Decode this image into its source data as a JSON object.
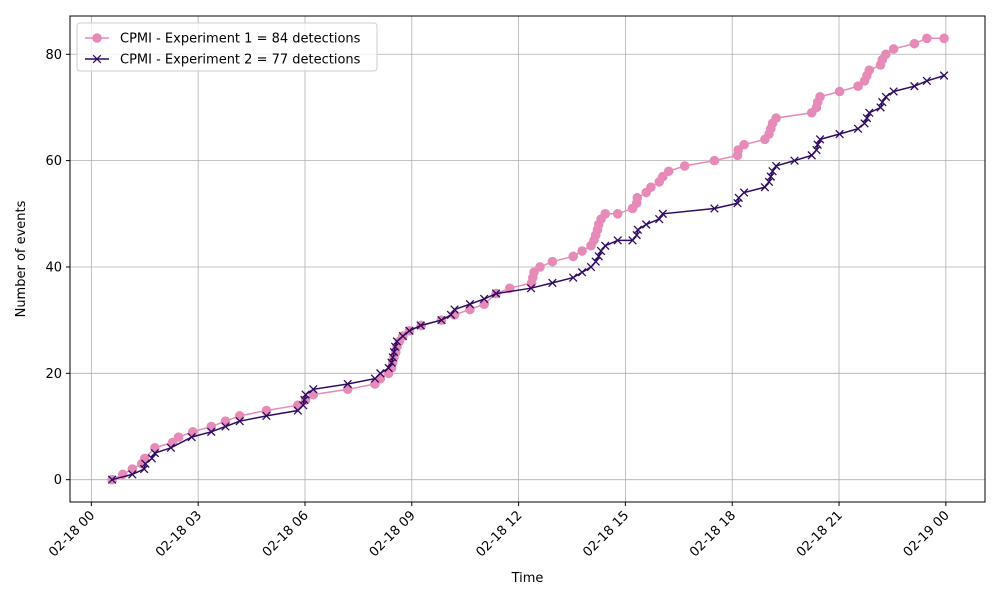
{
  "chart_data": {
    "type": "line",
    "xlabel": "Time",
    "ylabel": "Number of events",
    "x_ticks": [
      "02-18 00",
      "02-18 03",
      "02-18 06",
      "02-18 09",
      "02-18 12",
      "02-18 15",
      "02-18 18",
      "02-18 21",
      "02-19 00"
    ],
    "xlim": [
      "2024-02-17T23:24",
      "2024-02-19T01:06"
    ],
    "y_ticks": [
      0,
      20,
      40,
      60,
      80
    ],
    "ylim": [
      -4.2,
      87.2
    ],
    "grid": true,
    "legend_position": "top-left",
    "series": [
      {
        "name": "CPMI - Experiment 1 = 84 detections",
        "color": "#e68ab8",
        "marker": "circle",
        "x": [
          "2024-02-18T00:35",
          "2024-02-18T00:53",
          "2024-02-18T01:09",
          "2024-02-18T01:25",
          "2024-02-18T01:30",
          "2024-02-18T01:47",
          "2024-02-18T02:17",
          "2024-02-18T02:27",
          "2024-02-18T02:51",
          "2024-02-18T03:22",
          "2024-02-18T03:46",
          "2024-02-18T04:10",
          "2024-02-18T04:55",
          "2024-02-18T05:48",
          "2024-02-18T06:01",
          "2024-02-18T06:14",
          "2024-02-18T07:12",
          "2024-02-18T07:58",
          "2024-02-18T08:07",
          "2024-02-18T08:21",
          "2024-02-18T08:26",
          "2024-02-18T08:28",
          "2024-02-18T08:30",
          "2024-02-18T08:33",
          "2024-02-18T08:35",
          "2024-02-18T08:39",
          "2024-02-18T08:45",
          "2024-02-18T08:56",
          "2024-02-18T09:16",
          "2024-02-18T09:50",
          "2024-02-18T10:12",
          "2024-02-18T10:38",
          "2024-02-18T11:02",
          "2024-02-18T11:22",
          "2024-02-18T11:45",
          "2024-02-18T12:22",
          "2024-02-18T12:24",
          "2024-02-18T12:26",
          "2024-02-18T12:36",
          "2024-02-18T12:57",
          "2024-02-18T13:32",
          "2024-02-18T13:47",
          "2024-02-18T14:02",
          "2024-02-18T14:07",
          "2024-02-18T14:10",
          "2024-02-18T14:13",
          "2024-02-18T14:15",
          "2024-02-18T14:19",
          "2024-02-18T14:26",
          "2024-02-18T14:47",
          "2024-02-18T15:12",
          "2024-02-18T15:19",
          "2024-02-18T15:20",
          "2024-02-18T15:35",
          "2024-02-18T15:43",
          "2024-02-18T15:57",
          "2024-02-18T16:03",
          "2024-02-18T16:13",
          "2024-02-18T16:40",
          "2024-02-18T17:30",
          "2024-02-18T18:09",
          "2024-02-18T18:10",
          "2024-02-18T18:20",
          "2024-02-18T18:55",
          "2024-02-18T19:02",
          "2024-02-18T19:05",
          "2024-02-18T19:08",
          "2024-02-18T19:14",
          "2024-02-18T20:14",
          "2024-02-18T20:22",
          "2024-02-18T20:24",
          "2024-02-18T20:28",
          "2024-02-18T21:01",
          "2024-02-18T21:32",
          "2024-02-18T21:43",
          "2024-02-18T21:47",
          "2024-02-18T21:51",
          "2024-02-18T22:10",
          "2024-02-18T22:13",
          "2024-02-18T22:19",
          "2024-02-18T22:32",
          "2024-02-18T23:07",
          "2024-02-18T23:28",
          "2024-02-18T23:57"
        ],
        "y": [
          0,
          1,
          2,
          3,
          4,
          6,
          7,
          8,
          9,
          10,
          11,
          12,
          13,
          14,
          15,
          16,
          17,
          18,
          19,
          20,
          21,
          22,
          23,
          24,
          25,
          26,
          27,
          28,
          29,
          30,
          31,
          32,
          33,
          35,
          36,
          37,
          38,
          39,
          40,
          41,
          42,
          43,
          44,
          45,
          46,
          47,
          48,
          49,
          50,
          50,
          51,
          52,
          53,
          54,
          55,
          56,
          57,
          58,
          59,
          60,
          61,
          62,
          63,
          64,
          65,
          66,
          67,
          68,
          69,
          70,
          71,
          72,
          73,
          74,
          75,
          76,
          77,
          78,
          79,
          80,
          81,
          82,
          83,
          83
        ]
      },
      {
        "name": "CPMI - Experiment 2 = 77 detections",
        "color": "#2e0b61",
        "marker": "x",
        "x": [
          "2024-02-18T00:35",
          "2024-02-18T01:09",
          "2024-02-18T01:29",
          "2024-02-18T01:31",
          "2024-02-18T01:42",
          "2024-02-18T01:47",
          "2024-02-18T02:14",
          "2024-02-18T02:49",
          "2024-02-18T03:22",
          "2024-02-18T03:46",
          "2024-02-18T04:10",
          "2024-02-18T04:55",
          "2024-02-18T05:48",
          "2024-02-18T05:57",
          "2024-02-18T05:59",
          "2024-02-18T06:01",
          "2024-02-18T06:14",
          "2024-02-18T07:12",
          "2024-02-18T07:58",
          "2024-02-18T08:07",
          "2024-02-18T08:21",
          "2024-02-18T08:26",
          "2024-02-18T08:28",
          "2024-02-18T08:30",
          "2024-02-18T08:32",
          "2024-02-18T08:35",
          "2024-02-18T08:45",
          "2024-02-18T08:56",
          "2024-02-18T09:15",
          "2024-02-18T09:50",
          "2024-02-18T10:06",
          "2024-02-18T10:12",
          "2024-02-18T10:38",
          "2024-02-18T11:02",
          "2024-02-18T11:22",
          "2024-02-18T12:21",
          "2024-02-18T12:57",
          "2024-02-18T13:32",
          "2024-02-18T13:47",
          "2024-02-18T14:02",
          "2024-02-18T14:10",
          "2024-02-18T14:15",
          "2024-02-18T14:19",
          "2024-02-18T14:26",
          "2024-02-18T14:47",
          "2024-02-18T15:12",
          "2024-02-18T15:19",
          "2024-02-18T15:21",
          "2024-02-18T15:35",
          "2024-02-18T15:57",
          "2024-02-18T16:03",
          "2024-02-18T17:30",
          "2024-02-18T18:09",
          "2024-02-18T18:11",
          "2024-02-18T18:20",
          "2024-02-18T18:55",
          "2024-02-18T19:02",
          "2024-02-18T19:05",
          "2024-02-18T19:08",
          "2024-02-18T19:14",
          "2024-02-18T19:45",
          "2024-02-18T20:14",
          "2024-02-18T20:22",
          "2024-02-18T20:24",
          "2024-02-18T20:28",
          "2024-02-18T21:01",
          "2024-02-18T21:32",
          "2024-02-18T21:43",
          "2024-02-18T21:47",
          "2024-02-18T21:51",
          "2024-02-18T22:10",
          "2024-02-18T22:13",
          "2024-02-18T22:19",
          "2024-02-18T22:32",
          "2024-02-18T23:07",
          "2024-02-18T23:28",
          "2024-02-18T23:57"
        ],
        "y": [
          0,
          1,
          2,
          3,
          4,
          5,
          6,
          8,
          9,
          10,
          11,
          12,
          13,
          14,
          15,
          16,
          17,
          18,
          19,
          20,
          21,
          22,
          23,
          24,
          25,
          26,
          27,
          28,
          29,
          30,
          31,
          32,
          33,
          34,
          35,
          36,
          37,
          38,
          39,
          40,
          41,
          42,
          43,
          44,
          45,
          45,
          46,
          47,
          48,
          49,
          50,
          51,
          52,
          53,
          54,
          55,
          56,
          57,
          58,
          59,
          60,
          61,
          62,
          63,
          64,
          65,
          66,
          67,
          68,
          69,
          70,
          71,
          72,
          73,
          74,
          75,
          76
        ]
      }
    ]
  }
}
